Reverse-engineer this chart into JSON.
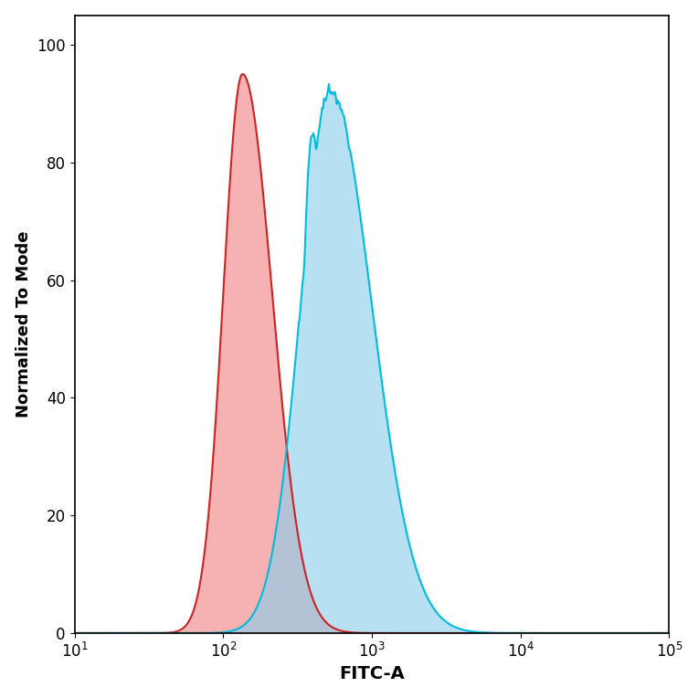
{
  "xlabel": "FITC-A",
  "ylabel": "Normalized To Mode",
  "ylim": [
    0,
    105
  ],
  "yticks": [
    0,
    20,
    40,
    60,
    80,
    100
  ],
  "background_color": "#ffffff",
  "plot_bg_color": "#ffffff",
  "red_fill_color": "#f08080",
  "red_line_color": "#cc2222",
  "blue_fill_color": "#87ceeb",
  "blue_line_color": "#00bbdd",
  "fill_alpha": 0.6,
  "line_width": 1.5,
  "xlabel_fontsize": 14,
  "ylabel_fontsize": 13,
  "tick_fontsize": 12,
  "xlabel_fontweight": "bold",
  "ylabel_fontweight": "bold"
}
